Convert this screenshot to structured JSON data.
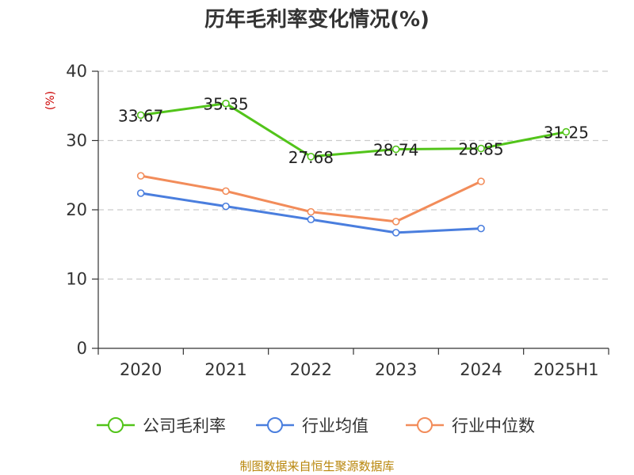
{
  "chart_data": {
    "type": "line",
    "title": "历年毛利率变化情况(%)",
    "ylabel": "(%)",
    "ylim": [
      0,
      40
    ],
    "yticks": [
      0,
      10,
      20,
      30,
      40
    ],
    "categories": [
      "2020",
      "2021",
      "2022",
      "2023",
      "2024",
      "2025H1"
    ],
    "grid": true,
    "legend_position": "bottom",
    "series": [
      {
        "name": "公司毛利率",
        "color": "#52c41a",
        "values": [
          33.67,
          35.35,
          27.68,
          28.74,
          28.85,
          31.25
        ],
        "labels": [
          "33.67",
          "35.35",
          "27.68",
          "28.74",
          "28.85",
          "31.25"
        ]
      },
      {
        "name": "行业均值",
        "color": "#4a7ede",
        "values": [
          22.4,
          20.5,
          18.6,
          16.7,
          17.3,
          null
        ]
      },
      {
        "name": "行业中位数",
        "color": "#f28c5a",
        "values": [
          24.9,
          22.7,
          19.7,
          18.3,
          24.1,
          null
        ]
      }
    ]
  },
  "source": "制图数据来自恒生聚源数据库"
}
